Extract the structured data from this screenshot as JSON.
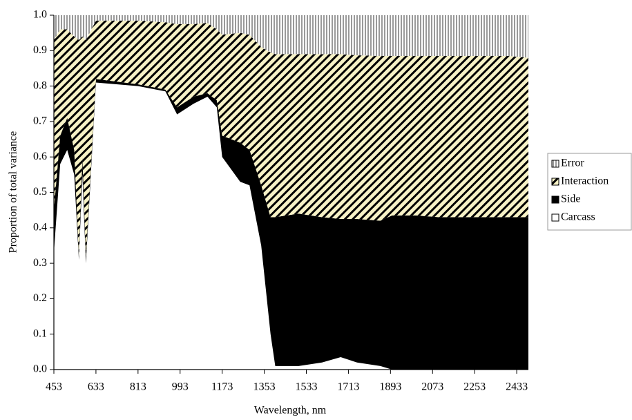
{
  "chart_data": {
    "type": "stacked-area",
    "x_label": "Wavelength, nm",
    "y_label": "Proportion of total variance",
    "x": [
      453,
      480,
      510,
      540,
      560,
      575,
      590,
      633,
      813,
      930,
      980,
      1050,
      1110,
      1150,
      1173,
      1250,
      1290,
      1340,
      1380,
      1400,
      1500,
      1600,
      1680,
      1750,
      1850,
      1900,
      2000,
      2100,
      2200,
      2300,
      2400,
      2483
    ],
    "series": [
      {
        "name": "Carcass",
        "color": "#ffffff",
        "hatch": "none",
        "values": [
          0.33,
          0.58,
          0.62,
          0.55,
          0.31,
          0.55,
          0.3,
          0.81,
          0.8,
          0.785,
          0.72,
          0.75,
          0.77,
          0.74,
          0.6,
          0.53,
          0.52,
          0.35,
          0.1,
          0.01,
          0.01,
          0.02,
          0.035,
          0.02,
          0.01,
          0,
          0,
          0,
          0,
          0,
          0,
          0
        ]
      },
      {
        "name": "Side",
        "color": "#000000",
        "hatch": "none",
        "values": [
          0.12,
          0.08,
          0.09,
          0.07,
          0.01,
          0.05,
          0.02,
          0.01,
          0.005,
          0.005,
          0.02,
          0.02,
          0.01,
          0.02,
          0.06,
          0.11,
          0.1,
          0.17,
          0.33,
          0.42,
          0.43,
          0.41,
          0.39,
          0.405,
          0.41,
          0.435,
          0.435,
          0.43,
          0.43,
          0.43,
          0.43,
          0.43
        ]
      },
      {
        "name": "Interaction",
        "color": "#f7f2c6",
        "hatch": "diagonal",
        "values": [
          0.48,
          0.3,
          0.25,
          0.32,
          0.61,
          0.34,
          0.61,
          0.165,
          0.18,
          0.19,
          0.235,
          0.205,
          0.198,
          0.2,
          0.285,
          0.31,
          0.325,
          0.39,
          0.465,
          0.46,
          0.45,
          0.46,
          0.465,
          0.462,
          0.465,
          0.45,
          0.45,
          0.455,
          0.455,
          0.455,
          0.455,
          0.45
        ]
      },
      {
        "name": "Error",
        "color": "#ffffff",
        "hatch": "vertical",
        "values": [
          0.07,
          0.04,
          0.04,
          0.06,
          0.07,
          0.06,
          0.07,
          0.015,
          0.015,
          0.02,
          0.025,
          0.025,
          0.022,
          0.04,
          0.055,
          0.05,
          0.055,
          0.09,
          0.105,
          0.11,
          0.11,
          0.11,
          0.11,
          0.113,
          0.115,
          0.115,
          0.115,
          0.115,
          0.115,
          0.115,
          0.115,
          0.12
        ]
      }
    ],
    "xlim": [
      453,
      2483
    ],
    "xticks": [
      453,
      633,
      813,
      993,
      1173,
      1353,
      1533,
      1713,
      1893,
      2073,
      2253,
      2433
    ],
    "ylim": [
      0,
      1
    ],
    "yticks": [
      {
        "value": 0,
        "label": "0.0"
      },
      0.1,
      0.2,
      0.3,
      0.4,
      0.5,
      0.6,
      0.7,
      0.8,
      0.9,
      {
        "value": 1,
        "label": "1.0"
      }
    ],
    "legend": "right"
  }
}
